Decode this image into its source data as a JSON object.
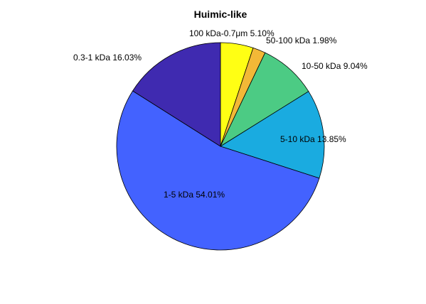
{
  "chart_data": {
    "type": "pie",
    "title": "Huimic-like",
    "start": "12 o'clock",
    "direction": "clockwise",
    "slices": [
      {
        "label": "100 kDa-0.7μm",
        "pct_text": "5.10%",
        "value": 5.1,
        "color": "#FFFF14"
      },
      {
        "label": "50-100 kDa",
        "pct_text": "1.98%",
        "value": 1.98,
        "color": "#F2B837"
      },
      {
        "label": "10-50 kDa",
        "pct_text": "9.04%",
        "value": 9.04,
        "color": "#4CCB84"
      },
      {
        "label": "5-10 kDa",
        "pct_text": "13.85%",
        "value": 13.85,
        "color": "#1AABE0"
      },
      {
        "label": "1-5 kDa",
        "pct_text": "54.01%",
        "value": 54.01,
        "color": "#4362FF"
      },
      {
        "label": "0.3-1 kDa",
        "pct_text": "16.03%",
        "value": 16.03,
        "color": "#3F2AB0"
      }
    ]
  }
}
